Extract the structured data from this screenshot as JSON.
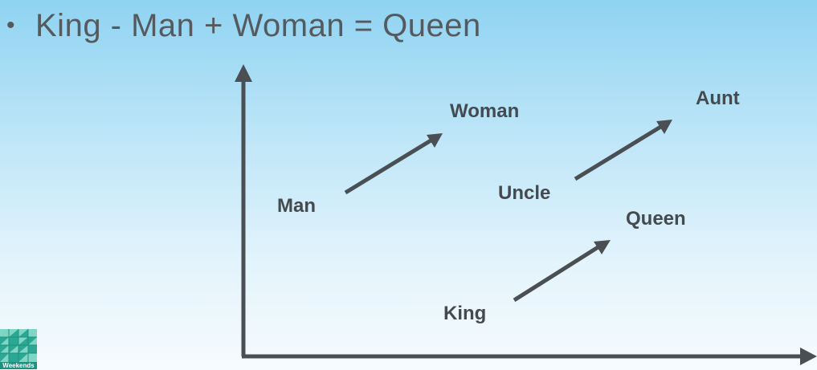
{
  "slide": {
    "bullet_text": "King - Man + Woman = Queen",
    "bullet_glyph": "•"
  },
  "diagram": {
    "words": {
      "man": "Man",
      "woman": "Woman",
      "uncle": "Uncle",
      "aunt": "Aunt",
      "king": "King",
      "queen": "Queen"
    },
    "arrow_color": "#4a4f53",
    "text_color": "#444a4e"
  },
  "logo": {
    "text": "Weekends",
    "color": "#1f8f7f"
  }
}
